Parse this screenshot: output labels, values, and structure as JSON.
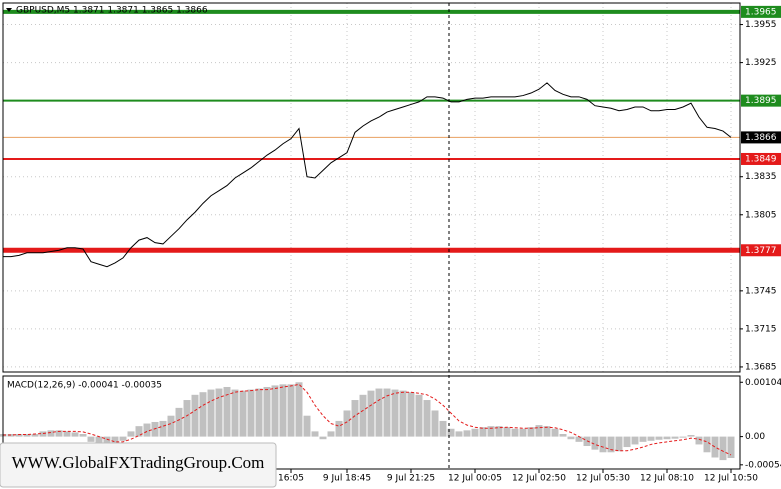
{
  "watermark": "WWW.GlobalFXTradingGroup.Com",
  "chart_data": [
    {
      "type": "line",
      "title": "GBPUSD,M5  1.3871 1.3871 1.3865 1.3866",
      "color": "#000000",
      "categories": [
        null,
        null,
        null,
        null,
        null,
        null,
        null,
        null,
        null,
        null,
        null,
        null,
        null,
        null,
        null,
        null,
        null,
        null,
        null,
        null,
        null,
        null,
        null,
        null,
        null,
        null,
        null,
        null,
        null,
        null,
        null,
        null,
        null,
        null,
        null,
        null,
        "16:05",
        null,
        null,
        null,
        null,
        null,
        null,
        "9 Jul 18:45",
        null,
        null,
        null,
        null,
        null,
        null,
        null,
        "9 Jul 21:25",
        null,
        null,
        null,
        null,
        null,
        null,
        null,
        "12 Jul 00:05",
        null,
        null,
        null,
        null,
        null,
        null,
        null,
        "12 Jul 02:50",
        null,
        null,
        null,
        null,
        null,
        null,
        null,
        "12 Jul 05:30",
        null,
        null,
        null,
        null,
        null,
        null,
        null,
        "12 Jul 08:10",
        null,
        null,
        null,
        null,
        null,
        null,
        null,
        "12 Jul 10:50"
      ],
      "values": [
        1.3772,
        1.3772,
        1.3773,
        1.3775,
        1.3775,
        1.3775,
        1.3776,
        1.3777,
        1.3779,
        1.3779,
        1.3778,
        1.3768,
        1.3766,
        1.3764,
        1.3767,
        1.3771,
        1.3779,
        1.3785,
        1.3787,
        1.3783,
        1.3782,
        1.3788,
        1.3794,
        1.3801,
        1.3807,
        1.3814,
        1.382,
        1.3824,
        1.3828,
        1.3834,
        1.3838,
        1.3842,
        1.3847,
        1.3852,
        1.3856,
        1.3861,
        1.3865,
        1.3873,
        1.3835,
        1.3834,
        1.384,
        1.3846,
        1.385,
        1.3854,
        1.387,
        1.3875,
        1.3879,
        1.3882,
        1.3886,
        1.3888,
        1.389,
        1.3892,
        1.3894,
        1.3898,
        1.3898,
        1.3897,
        1.3894,
        1.3894,
        1.3896,
        1.3897,
        1.3897,
        1.3898,
        1.3898,
        1.3898,
        1.3898,
        1.3899,
        1.3901,
        1.3904,
        1.3909,
        1.3903,
        1.39,
        1.3898,
        1.3898,
        1.3896,
        1.3891,
        1.389,
        1.3889,
        1.3887,
        1.3888,
        1.389,
        1.389,
        1.3887,
        1.3887,
        1.3888,
        1.3888,
        1.389,
        1.3893,
        1.3882,
        1.3874,
        1.3873,
        1.3871,
        1.3866
      ],
      "ylim": [
        1.3681,
        1.3972
      ],
      "yticks": [
        1.3955,
        1.3925,
        1.3835,
        1.3805,
        1.3745,
        1.3715,
        1.3685
      ],
      "grid": true,
      "levels": [
        {
          "value": 1.3965,
          "color": "#1e8c1e",
          "width": 4
        },
        {
          "value": 1.3895,
          "color": "#1e8c1e",
          "width": 2
        },
        {
          "value": 1.3866,
          "color": "#e8a060",
          "width": 1,
          "label_color": "#000000"
        },
        {
          "value": 1.3849,
          "color": "#e41a1a",
          "width": 2
        },
        {
          "value": 1.3777,
          "color": "#e41a1a",
          "width": 5
        }
      ]
    },
    {
      "type": "bar",
      "title": "MACD(12,26,9) -0.00041 -0.00035",
      "ylim": [
        -0.00062,
        0.00116
      ],
      "yticks": [
        0.00104,
        {
          "value": 0,
          "label": "0.00"
        },
        -0.00054
      ],
      "series": [
        {
          "color": "#c0c0c0",
          "values": [
            5e-05,
            5e-05,
            5e-05,
            5e-05,
            5e-05,
            0.0001,
            0.00012,
            0.00012,
            0.0001,
            8e-05,
            5e-05,
            -0.0001,
            -0.00015,
            -0.00018,
            -0.00015,
            -8e-05,
            0.0001,
            0.0002,
            0.00025,
            0.00028,
            0.0003,
            0.0004,
            0.00055,
            0.0007,
            0.0008,
            0.00085,
            0.0009,
            0.00092,
            0.00095,
            0.0009,
            0.00088,
            0.0009,
            0.00092,
            0.00095,
            0.00098,
            0.001,
            0.001,
            0.00104,
            0.0004,
            0.0001,
            -5e-05,
            0.0001,
            0.0003,
            0.0005,
            0.0007,
            0.0008,
            0.00088,
            0.00092,
            0.00092,
            0.0009,
            0.00088,
            0.00085,
            0.0008,
            0.0007,
            0.0005,
            0.0003,
            0.00015,
            0.0001,
            0.00012,
            0.00015,
            0.00018,
            0.0002,
            0.0002,
            0.00018,
            0.00015,
            0.00015,
            0.00018,
            0.00022,
            0.0002,
            0.00015,
            5e-05,
            -5e-05,
            -0.0001,
            -0.00018,
            -0.00025,
            -0.0003,
            -0.0003,
            -0.00028,
            -0.0002,
            -0.00015,
            -0.0001,
            -8e-05,
            -6e-05,
            -5e-05,
            -4e-05,
            -2e-05,
            3e-05,
            -0.00015,
            -0.0003,
            -0.0004,
            -0.00045,
            -0.00041
          ]
        },
        {
          "color": "#e41a1a",
          "style": "dashed",
          "values": [
            3e-05,
            3e-05,
            4e-05,
            4e-05,
            5e-05,
            6e-05,
            8e-05,
            0.0001,
            0.0001,
            0.0001,
            9e-05,
            5e-05,
            0,
            -5e-05,
            -0.0001,
            -0.0001,
            -5e-05,
            2e-05,
            0.0001,
            0.00015,
            0.0002,
            0.00025,
            0.00032,
            0.0004,
            0.0005,
            0.0006,
            0.00068,
            0.00075,
            0.0008,
            0.00085,
            0.00087,
            0.00088,
            0.0009,
            0.0009,
            0.00092,
            0.00095,
            0.00097,
            0.001,
            0.00085,
            0.0006,
            0.0004,
            0.00025,
            0.0002,
            0.00028,
            0.0004,
            0.0005,
            0.0006,
            0.0007,
            0.00078,
            0.00083,
            0.00085,
            0.00085,
            0.00083,
            0.0008,
            0.00072,
            0.0006,
            0.00045,
            0.0003,
            0.00022,
            0.00018,
            0.00016,
            0.00016,
            0.00017,
            0.00018,
            0.00017,
            0.00016,
            0.00016,
            0.00017,
            0.00018,
            0.00017,
            0.00013,
            8e-05,
            0,
            -8e-05,
            -0.00015,
            -0.0002,
            -0.00025,
            -0.00027,
            -0.00027,
            -0.00024,
            -0.0002,
            -0.00015,
            -0.00012,
            -0.0001,
            -8e-05,
            -6e-05,
            -3e-05,
            -5e-05,
            -0.0001,
            -0.0002,
            -0.00028,
            -0.00035
          ]
        }
      ]
    }
  ]
}
